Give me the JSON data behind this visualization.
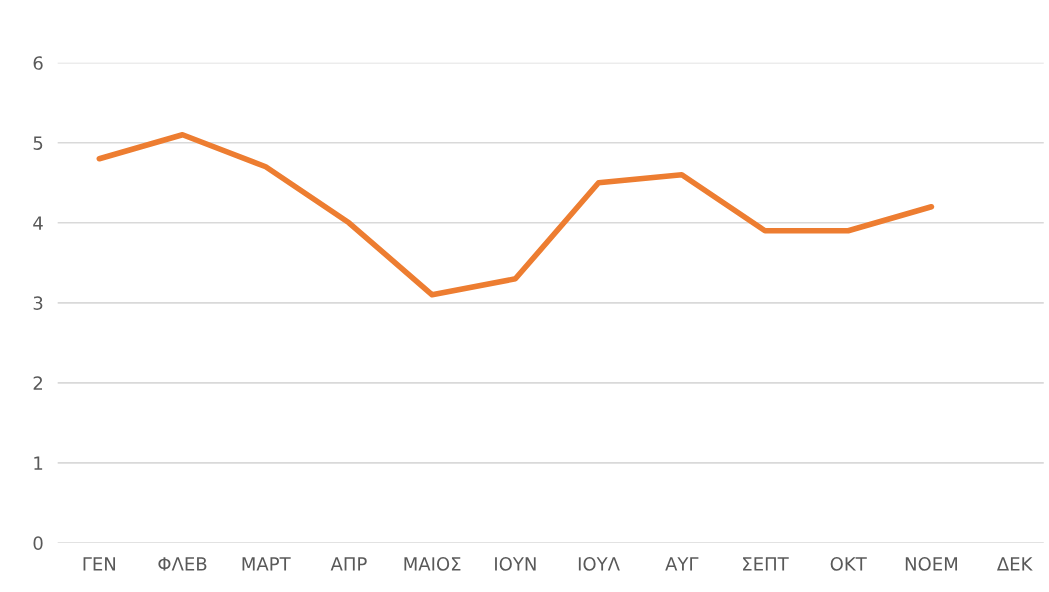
{
  "chart_data": {
    "type": "line",
    "categories": [
      "ΓΕΝ",
      "ΦΛΕΒ",
      "ΜΑΡΤ",
      "ΑΠΡ",
      "ΜΑΙΟΣ",
      "ΙΟΥΝ",
      "ΙΟΥΛ",
      "ΑΥΓ",
      "ΣΕΠΤ",
      "ΟΚΤ",
      "ΝΟΕΜ",
      "ΔΕΚ"
    ],
    "series": [
      {
        "color": "#ed7d31",
        "values": [
          4.8,
          5.1,
          4.7,
          4.0,
          3.1,
          3.3,
          4.5,
          4.6,
          3.9,
          3.9,
          4.2,
          null
        ]
      }
    ],
    "ylim": [
      0,
      6
    ],
    "yticks": [
      0,
      1,
      2,
      3,
      4,
      5,
      6
    ],
    "grid": "y",
    "marker": "none",
    "line_style": "solid",
    "legend": false
  }
}
